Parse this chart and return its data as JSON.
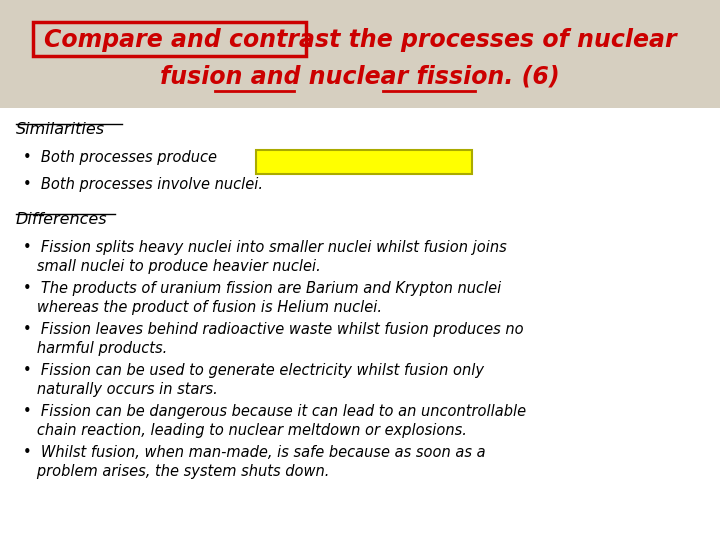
{
  "bg_color": "#d6cfc0",
  "white_bg": "#ffffff",
  "title_line1": "Compare and contrast the processes of nuclear",
  "title_line2": "fusion and nuclear fission. (6)",
  "title_color": "#cc0000",
  "title_fontsize": 17,
  "header_box_color": "#cc0000",
  "highlight_box_color": "#ffff00",
  "highlight_box_border": "#aaaa00",
  "similarities_header": "Similarities",
  "differences_header": "Differences",
  "bullet1": "Both processes produce",
  "bullet2": "Both processes involve nuclei.",
  "diff_bullet1a": "•  Fission splits heavy nuclei into smaller nuclei whilst fusion joins",
  "diff_bullet1b": "   small nuclei to produce heavier nuclei.",
  "diff_bullet2a": "•  The products of uranium fission are Barium and Krypton nuclei",
  "diff_bullet2b": "   whereas the product of fusion is Helium nuclei.",
  "diff_bullet3a": "•  Fission leaves behind radioactive waste whilst fusion produces no",
  "diff_bullet3b": "   harmful products.",
  "diff_bullet4a": "•  Fission can be used to generate electricity whilst fusion only",
  "diff_bullet4b": "   naturally occurs in stars.",
  "diff_bullet5a": "•  Fission can be dangerous because it can lead to an uncontrollable",
  "diff_bullet5b": "   chain reaction, leading to nuclear meltdown or explosions.",
  "diff_bullet6a": "•  Whilst fusion, when man-made, is safe because as soon as a",
  "diff_bullet6b": "   problem arises, the system shuts down.",
  "text_color": "#000000",
  "body_fontsize": 10.5,
  "header_fontsize": 11.5
}
